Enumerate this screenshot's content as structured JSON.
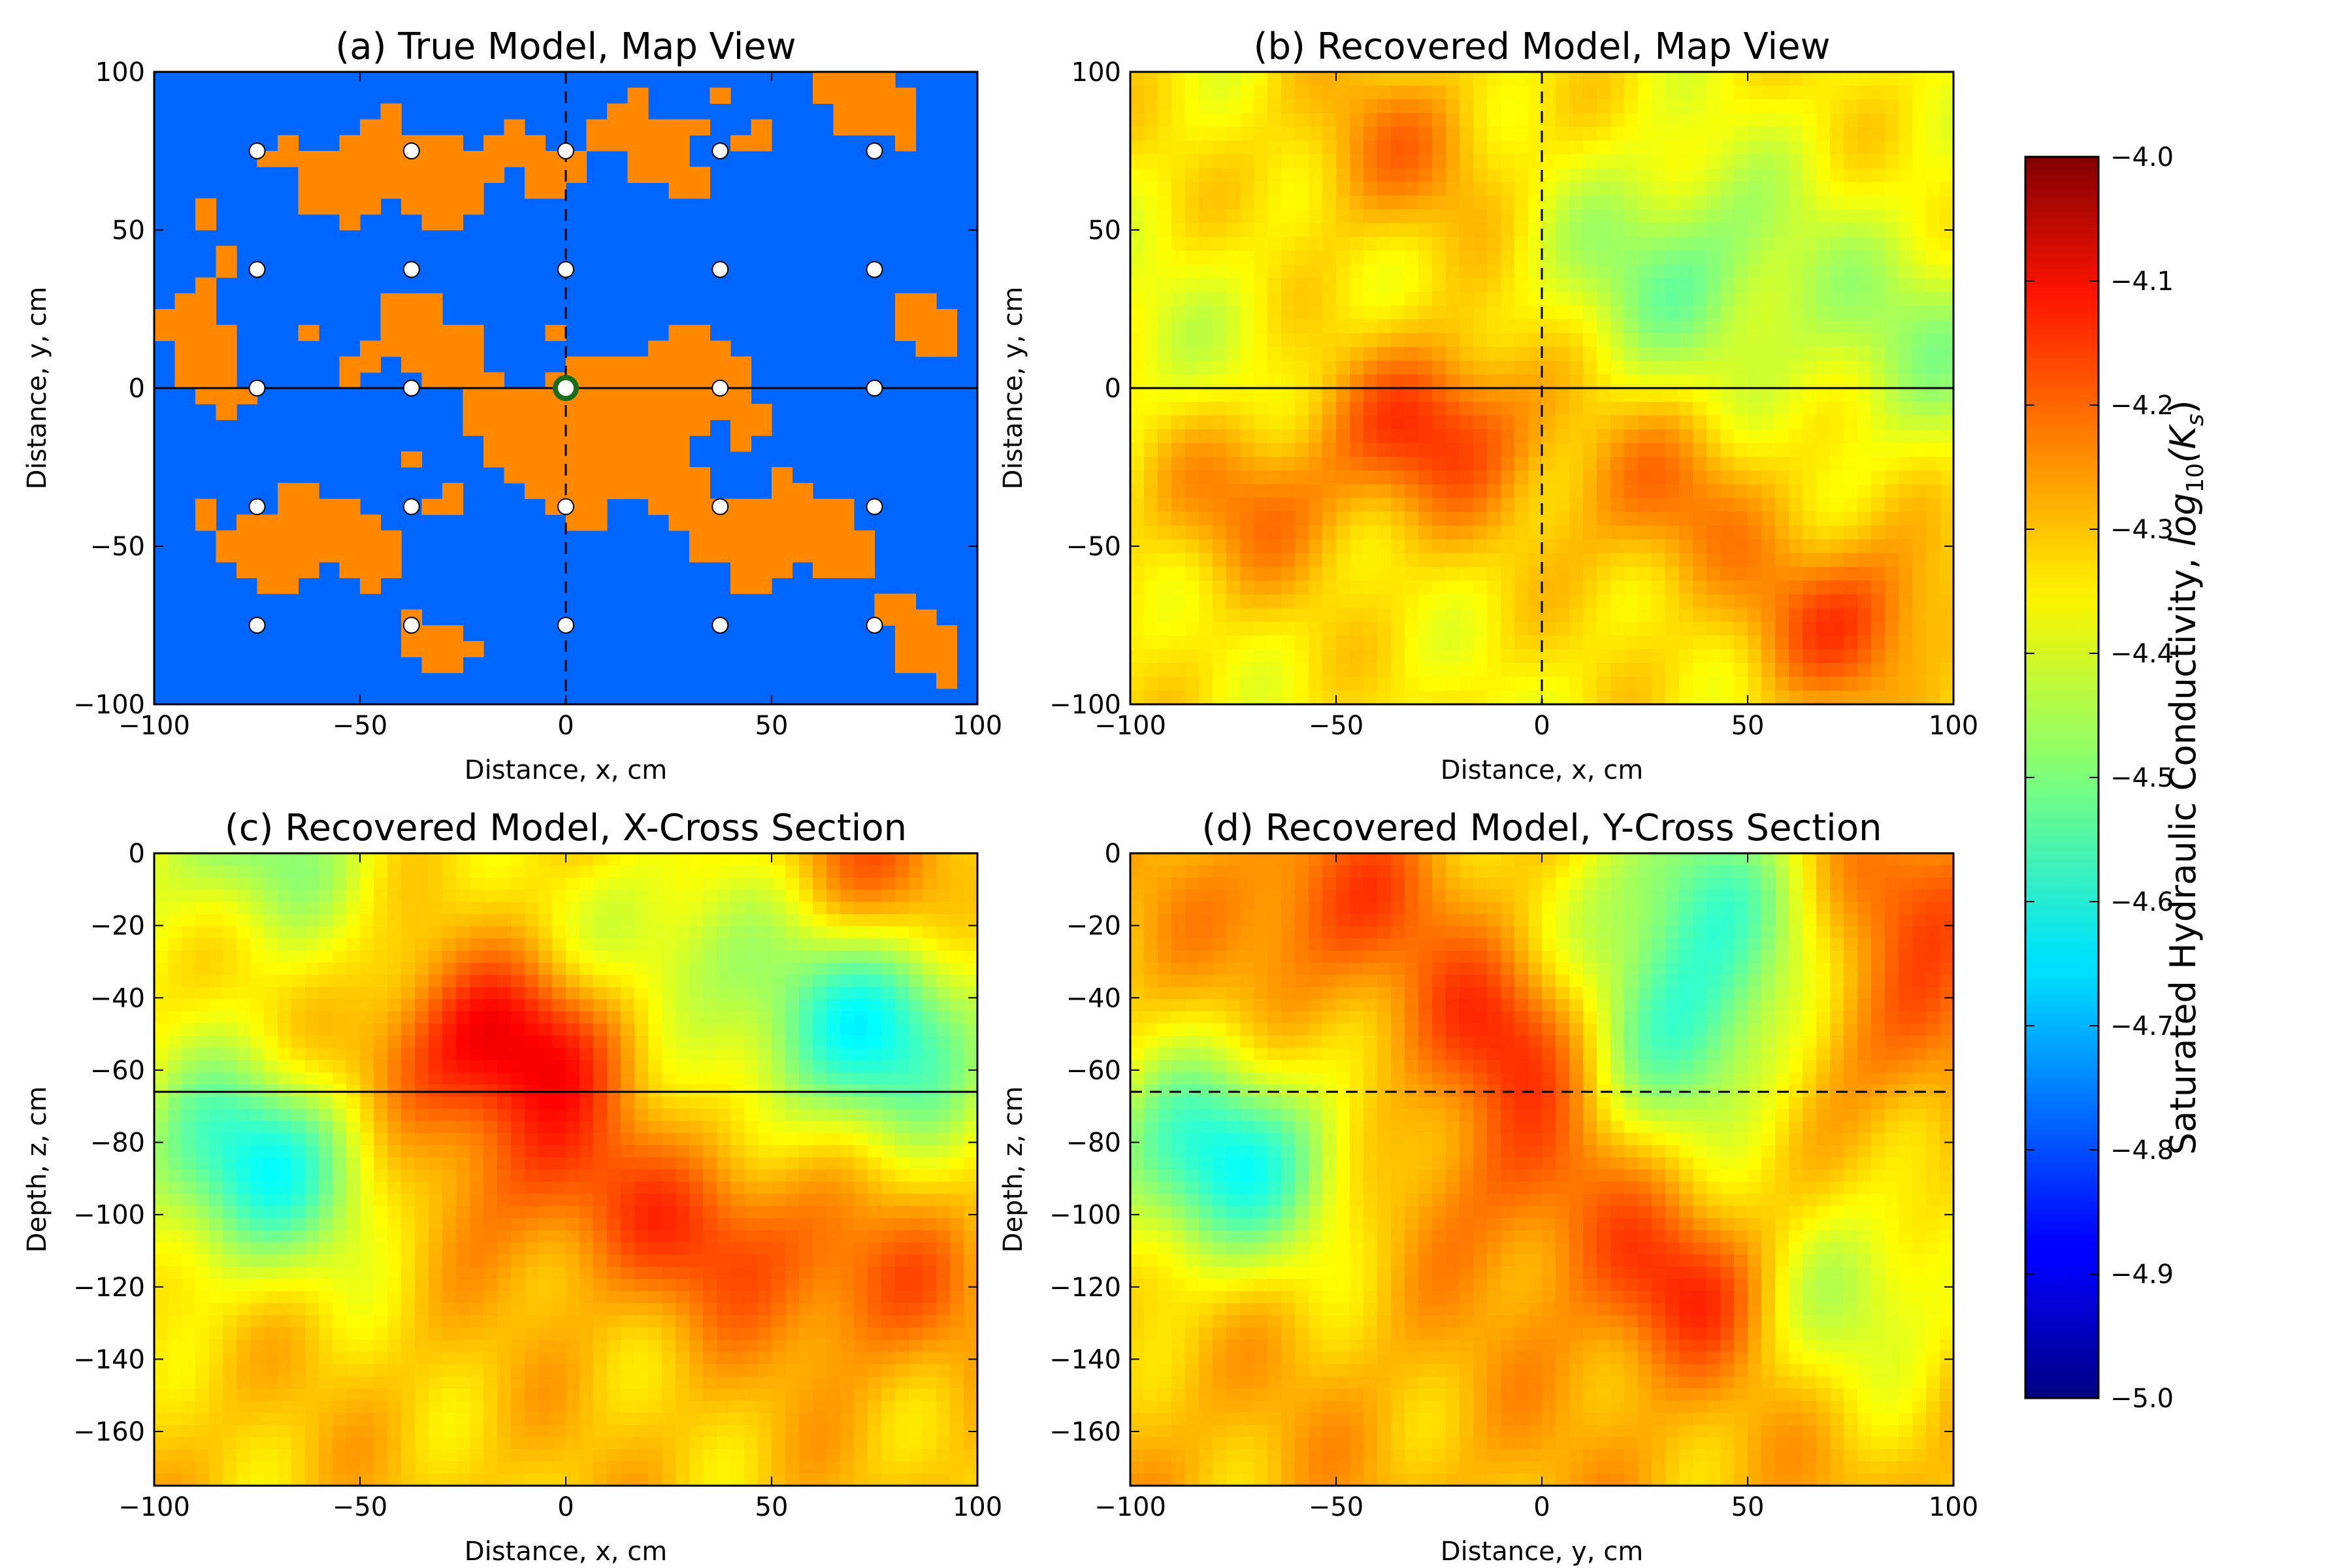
{
  "figure": {
    "colorbar": {
      "label_plain": "Saturated Hydraulic Conductivity, ",
      "label_math": "log",
      "label_sub": "10",
      "label_arg": "(K",
      "label_arg_sub": "s",
      "label_close": ")",
      "ticks": [
        "−4.0",
        "−4.1",
        "−4.2",
        "−4.3",
        "−4.4",
        "−4.5",
        "−4.6",
        "−4.7",
        "−4.8",
        "−4.9",
        "−5.0"
      ],
      "range": [
        -5.0,
        -4.0
      ],
      "colormap": "jet"
    }
  },
  "chart_data": [
    {
      "type": "heatmap",
      "panel": "a",
      "title": "(a) True Model, Map View",
      "xlabel": "Distance, x, cm",
      "ylabel": "Distance, y, cm",
      "xlim": [
        -100,
        100
      ],
      "ylim": [
        -100,
        100
      ],
      "xticks": [
        "−100",
        "−50",
        "0",
        "50",
        "100"
      ],
      "yticks": [
        "100",
        "50",
        "0",
        "−50",
        "−100"
      ],
      "categories": [
        "high conductivity (orange)",
        "low conductivity (blue)"
      ],
      "colors": {
        "high": "#ff8800",
        "low": "#0066ff"
      },
      "sensor_x": [
        -75,
        -37.5,
        0,
        37.5,
        75
      ],
      "sensor_y": [
        75,
        37.5,
        0,
        -37.5,
        -75
      ],
      "source_point": [
        0,
        0
      ],
      "lines": {
        "horizontal_solid_y": 0,
        "vertical_dashed_x": 0
      }
    },
    {
      "type": "heatmap",
      "panel": "b",
      "title": "(b) Recovered Model, Map View",
      "xlabel": "Distance, x, cm",
      "ylabel": "Distance, y, cm",
      "xlim": [
        -100,
        100
      ],
      "ylim": [
        -100,
        100
      ],
      "xticks": [
        "−100",
        "−50",
        "0",
        "50",
        "100"
      ],
      "yticks": [
        "100",
        "50",
        "0",
        "−50",
        "−100"
      ],
      "lines": {
        "horizontal_solid_y": 0,
        "vertical_dashed_x": 0
      },
      "highs": [
        [
          -25,
          -12,
          -4.18
        ],
        [
          75,
          -73,
          -4.2
        ],
        [
          -35,
          75,
          -4.26
        ],
        [
          -70,
          -35,
          -4.25
        ],
        [
          30,
          -35,
          -4.25
        ]
      ],
      "lows": [
        [
          35,
          38,
          -4.5
        ],
        [
          95,
          15,
          -4.46
        ],
        [
          -85,
          10,
          -4.4
        ]
      ]
    },
    {
      "type": "heatmap",
      "panel": "c",
      "title": "(c) Recovered Model, X-Cross Section",
      "xlabel": "Distance, x, cm",
      "ylabel": "Depth, z, cm",
      "xlim": [
        -100,
        100
      ],
      "ylim": [
        -175,
        0
      ],
      "xticks": [
        "−100",
        "−50",
        "0",
        "50",
        "100"
      ],
      "yticks": [
        "0",
        "−20",
        "−40",
        "−60",
        "−80",
        "−100",
        "−120",
        "−140",
        "−160"
      ],
      "lines": {
        "horizontal_solid_z": -66
      },
      "highs": [
        [
          -35,
          -60,
          -4.2
        ],
        [
          -5,
          -50,
          -4.15
        ],
        [
          35,
          -105,
          -4.2
        ],
        [
          -5,
          -90,
          -4.22
        ],
        [
          75,
          -120,
          -4.22
        ],
        [
          -75,
          -15,
          -4.22
        ],
        [
          75,
          -5,
          -4.22
        ]
      ],
      "lows": [
        [
          -75,
          -85,
          -4.6
        ],
        [
          75,
          -50,
          -4.6
        ],
        [
          -75,
          -5,
          -4.55
        ],
        [
          25,
          -25,
          -4.45
        ]
      ]
    },
    {
      "type": "heatmap",
      "panel": "d",
      "title": "(d) Recovered Model, Y-Cross Section",
      "xlabel": "Distance, y, cm",
      "ylabel": "Depth, z, cm",
      "xlim": [
        -100,
        100
      ],
      "ylim": [
        -175,
        0
      ],
      "xticks": [
        "−100",
        "−50",
        "0",
        "50",
        "100"
      ],
      "yticks": [
        "0",
        "−20",
        "−40",
        "−60",
        "−80",
        "−100",
        "−120",
        "−140",
        "−160"
      ],
      "lines": {
        "horizontal_dashed_z": -66
      },
      "highs": [
        [
          -5,
          -50,
          -4.15
        ],
        [
          37,
          -120,
          -4.15
        ],
        [
          -50,
          -15,
          -4.2
        ],
        [
          95,
          -10,
          -4.2
        ],
        [
          75,
          -50,
          -4.2
        ],
        [
          -5,
          -90,
          -4.22
        ]
      ],
      "lows": [
        [
          -78,
          -85,
          -4.6
        ],
        [
          37,
          -50,
          -4.55
        ],
        [
          37,
          -10,
          -4.5
        ],
        [
          75,
          -120,
          -4.45
        ]
      ]
    }
  ]
}
